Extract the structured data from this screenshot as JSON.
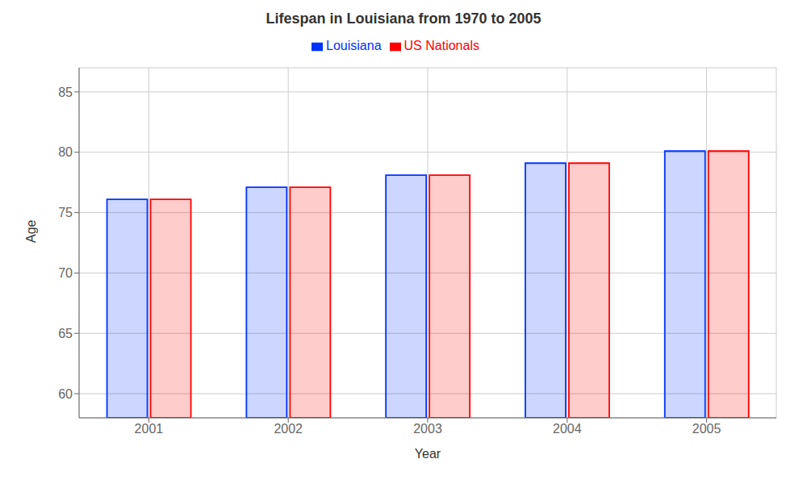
{
  "chart_data": {
    "type": "bar",
    "title": "Lifespan in Louisiana from 1970 to 2005",
    "xlabel": "Year",
    "ylabel": "Age",
    "categories": [
      "2001",
      "2002",
      "2003",
      "2004",
      "2005"
    ],
    "series": [
      {
        "name": "Louisiana",
        "color": "#0033ff",
        "values": [
          76.1,
          77.1,
          78.1,
          79.1,
          80.1
        ]
      },
      {
        "name": "US Nationals",
        "color": "#ff0000",
        "values": [
          76.1,
          77.1,
          78.1,
          79.1,
          80.1
        ]
      }
    ],
    "ylim": [
      58,
      87
    ],
    "yticks": [
      60,
      65,
      70,
      75,
      80,
      85
    ],
    "grid": true,
    "legend": "top"
  }
}
